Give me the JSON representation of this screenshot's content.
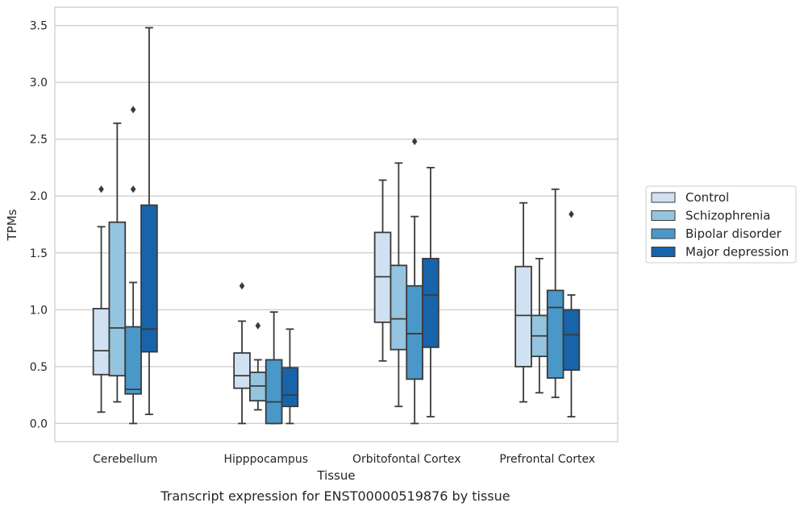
{
  "chart_data": {
    "type": "box",
    "xlabel": "Tissue",
    "ylabel": "TPMs",
    "ylim": [
      -0.16,
      3.66
    ],
    "yticks": [
      0.0,
      0.5,
      1.0,
      1.5,
      2.0,
      2.5,
      3.0,
      3.5
    ],
    "ytick_labels": [
      "0.0",
      "0.5",
      "1.0",
      "1.5",
      "2.0",
      "2.5",
      "3.0",
      "3.5"
    ],
    "grid": "horizontal",
    "legend_position": "right",
    "categories": [
      "Cerebellum",
      "Hipppocampus",
      "Orbitofontal Cortex",
      "Prefrontal Cortex"
    ],
    "series": [
      {
        "name": "Control",
        "color": "#d0e1f2",
        "boxes": [
          {
            "whislo": 0.1,
            "q1": 0.43,
            "med": 0.64,
            "q3": 1.01,
            "whishi": 1.73,
            "fliers": [
              2.06
            ]
          },
          {
            "whislo": 0.0,
            "q1": 0.31,
            "med": 0.42,
            "q3": 0.62,
            "whishi": 0.9,
            "fliers": [
              1.21
            ]
          },
          {
            "whislo": 0.55,
            "q1": 0.89,
            "med": 1.29,
            "q3": 1.68,
            "whishi": 2.14,
            "fliers": []
          },
          {
            "whislo": 0.19,
            "q1": 0.5,
            "med": 0.95,
            "q3": 1.38,
            "whishi": 1.94,
            "fliers": []
          }
        ]
      },
      {
        "name": "Schizophrenia",
        "color": "#94c4df",
        "boxes": [
          {
            "whislo": 0.19,
            "q1": 0.42,
            "med": 0.84,
            "q3": 1.77,
            "whishi": 2.64,
            "fliers": []
          },
          {
            "whislo": 0.12,
            "q1": 0.2,
            "med": 0.33,
            "q3": 0.45,
            "whishi": 0.56,
            "fliers": [
              0.86
            ]
          },
          {
            "whislo": 0.15,
            "q1": 0.65,
            "med": 0.92,
            "q3": 1.39,
            "whishi": 2.29,
            "fliers": []
          },
          {
            "whislo": 0.27,
            "q1": 0.59,
            "med": 0.77,
            "q3": 0.95,
            "whishi": 1.45,
            "fliers": []
          }
        ]
      },
      {
        "name": "Bipolar disorder",
        "color": "#4a98c9",
        "boxes": [
          {
            "whislo": 0.0,
            "q1": 0.26,
            "med": 0.3,
            "q3": 0.85,
            "whishi": 1.24,
            "fliers": [
              2.06,
              2.76
            ]
          },
          {
            "whislo": 0.0,
            "q1": 0.0,
            "med": 0.19,
            "q3": 0.56,
            "whishi": 0.98,
            "fliers": []
          },
          {
            "whislo": 0.0,
            "q1": 0.39,
            "med": 0.79,
            "q3": 1.21,
            "whishi": 1.82,
            "fliers": [
              2.48
            ]
          },
          {
            "whislo": 0.23,
            "q1": 0.4,
            "med": 1.02,
            "q3": 1.17,
            "whishi": 2.06,
            "fliers": []
          }
        ]
      },
      {
        "name": "Major depression",
        "color": "#1764ab",
        "boxes": [
          {
            "whislo": 0.08,
            "q1": 0.63,
            "med": 0.83,
            "q3": 1.92,
            "whishi": 3.48,
            "fliers": []
          },
          {
            "whislo": 0.0,
            "q1": 0.15,
            "med": 0.25,
            "q3": 0.49,
            "whishi": 0.83,
            "fliers": []
          },
          {
            "whislo": 0.06,
            "q1": 0.67,
            "med": 1.13,
            "q3": 1.45,
            "whishi": 2.25,
            "fliers": []
          },
          {
            "whislo": 0.06,
            "q1": 0.47,
            "med": 0.78,
            "q3": 1.0,
            "whishi": 1.13,
            "fliers": [
              1.84
            ]
          }
        ]
      }
    ],
    "caption": "Transcript expression for ENST00000519876 by tissue",
    "colors": {
      "edge": "#3a3a3a",
      "grid": "#cccccc",
      "spine": "#cccccc",
      "legend_frame": "#cccccc"
    }
  }
}
